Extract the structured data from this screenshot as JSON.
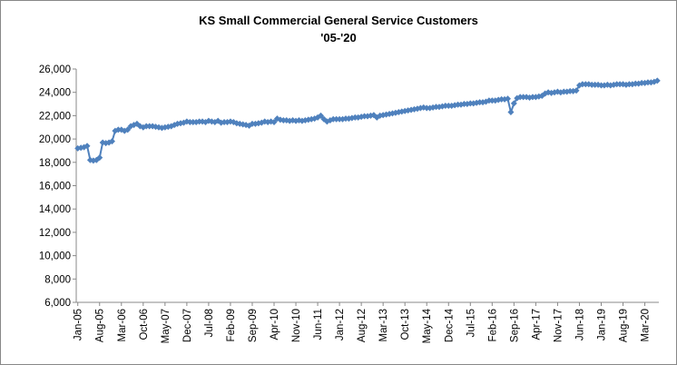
{
  "chart_data": {
    "type": "line",
    "title": "KS Small Commercial General Service Customers",
    "subtitle": "'05-'20",
    "categories": [
      "Jan-05",
      null,
      null,
      null,
      null,
      null,
      null,
      "Aug-05",
      null,
      null,
      null,
      null,
      null,
      null,
      "Mar-06",
      null,
      null,
      null,
      null,
      null,
      null,
      "Oct-06",
      null,
      null,
      null,
      null,
      null,
      null,
      "May-07",
      null,
      null,
      null,
      null,
      null,
      null,
      "Dec-07",
      null,
      null,
      null,
      null,
      null,
      null,
      "Jul-08",
      null,
      null,
      null,
      null,
      null,
      null,
      "Feb-09",
      null,
      null,
      null,
      null,
      null,
      null,
      "Sep-09",
      null,
      null,
      null,
      null,
      null,
      null,
      "Apr-10",
      null,
      null,
      null,
      null,
      null,
      null,
      "Nov-10",
      null,
      null,
      null,
      null,
      null,
      null,
      "Jun-11",
      null,
      null,
      null,
      null,
      null,
      null,
      "Jan-12",
      null,
      null,
      null,
      null,
      null,
      null,
      "Aug-12",
      null,
      null,
      null,
      null,
      null,
      null,
      "Mar-13",
      null,
      null,
      null,
      null,
      null,
      null,
      "Oct-13",
      null,
      null,
      null,
      null,
      null,
      null,
      "May-14",
      null,
      null,
      null,
      null,
      null,
      null,
      "Dec-14",
      null,
      null,
      null,
      null,
      null,
      null,
      "Jul-15",
      null,
      null,
      null,
      null,
      null,
      null,
      "Feb-16",
      null,
      null,
      null,
      null,
      null,
      null,
      "Sep-16",
      null,
      null,
      null,
      null,
      null,
      null,
      "Apr-17",
      null,
      null,
      null,
      null,
      null,
      null,
      "Nov-17",
      null,
      null,
      null,
      null,
      null,
      null,
      "Jun-18",
      null,
      null,
      null,
      null,
      null,
      null,
      "Jan-19",
      null,
      null,
      null,
      null,
      null,
      null,
      "Aug-19",
      null,
      null,
      null,
      null,
      null,
      null,
      "Mar-20",
      null,
      null,
      null,
      null
    ],
    "values": [
      19200,
      19250,
      19300,
      19400,
      18200,
      18150,
      18200,
      18400,
      19700,
      19650,
      19700,
      19800,
      20700,
      20800,
      20800,
      20700,
      20800,
      21100,
      21200,
      21300,
      21100,
      21000,
      21100,
      21100,
      21100,
      21050,
      21000,
      20950,
      21000,
      21050,
      21100,
      21200,
      21300,
      21350,
      21400,
      21500,
      21450,
      21450,
      21450,
      21500,
      21500,
      21450,
      21550,
      21500,
      21450,
      21550,
      21400,
      21450,
      21450,
      21500,
      21450,
      21350,
      21300,
      21250,
      21200,
      21150,
      21300,
      21300,
      21350,
      21400,
      21500,
      21450,
      21500,
      21450,
      21750,
      21650,
      21600,
      21600,
      21550,
      21600,
      21550,
      21600,
      21550,
      21600,
      21650,
      21700,
      21750,
      21850,
      22000,
      21700,
      21500,
      21600,
      21700,
      21700,
      21700,
      21700,
      21750,
      21750,
      21800,
      21850,
      21850,
      21900,
      21950,
      21950,
      22000,
      22050,
      21850,
      22000,
      22050,
      22100,
      22150,
      22200,
      22250,
      22300,
      22350,
      22400,
      22450,
      22500,
      22550,
      22600,
      22650,
      22700,
      22650,
      22650,
      22700,
      22750,
      22750,
      22800,
      22850,
      22850,
      22850,
      22900,
      22950,
      22950,
      23000,
      23000,
      23050,
      23050,
      23100,
      23150,
      23150,
      23200,
      23300,
      23300,
      23300,
      23350,
      23400,
      23400,
      23450,
      22300,
      23050,
      23500,
      23600,
      23600,
      23600,
      23550,
      23600,
      23600,
      23650,
      23700,
      23900,
      24000,
      23950,
      24000,
      24050,
      24000,
      24050,
      24050,
      24100,
      24100,
      24150,
      24600,
      24700,
      24700,
      24700,
      24650,
      24650,
      24650,
      24600,
      24600,
      24650,
      24600,
      24650,
      24700,
      24700,
      24700,
      24650,
      24700,
      24700,
      24750,
      24750,
      24800,
      24800,
      24850,
      24850,
      24900,
      25000
    ],
    "color": "#4f81bd",
    "ylim": [
      6000,
      26000
    ],
    "yticks": [
      {
        "value": 6000,
        "label": "6,000"
      },
      {
        "value": 8000,
        "label": "8,000"
      },
      {
        "value": 10000,
        "label": "10,000"
      },
      {
        "value": 12000,
        "label": "12,000"
      },
      {
        "value": 14000,
        "label": "14,000"
      },
      {
        "value": 16000,
        "label": "16,000"
      },
      {
        "value": 18000,
        "label": "18,000"
      },
      {
        "value": 20000,
        "label": "20,000"
      },
      {
        "value": 22000,
        "label": "22,000"
      },
      {
        "value": 24000,
        "label": "24,000"
      },
      {
        "value": 26000,
        "label": "26,000"
      }
    ],
    "grid": false
  }
}
